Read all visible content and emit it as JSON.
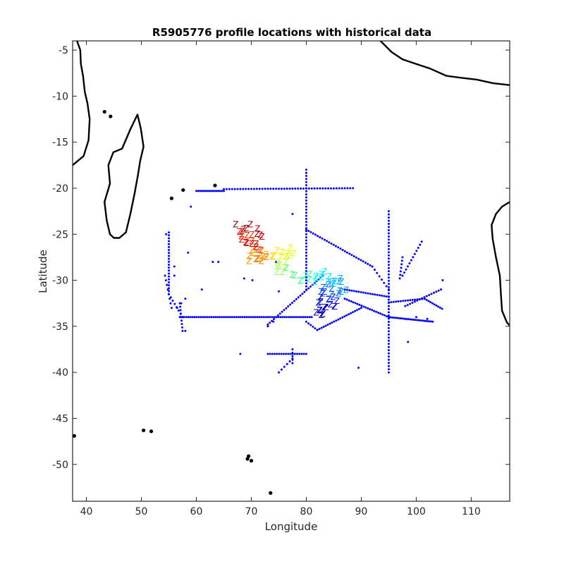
{
  "chart_data": {
    "type": "scatter",
    "title": "R5905776 profile locations with historical data",
    "xlabel": "Longitude",
    "ylabel": "Latitude",
    "xlim": [
      37.5,
      117
    ],
    "ylim": [
      -54,
      -4
    ],
    "xticks": [
      40,
      50,
      60,
      70,
      80,
      90,
      100,
      110
    ],
    "yticks": [
      -5,
      -10,
      -15,
      -20,
      -25,
      -30,
      -35,
      -40,
      -45,
      -50
    ],
    "xtick_labels": [
      "40",
      "50",
      "60",
      "70",
      "80",
      "90",
      "100",
      "110"
    ],
    "ytick_labels": [
      "-5",
      "-10",
      "-15",
      "-20",
      "-25",
      "-30",
      "-35",
      "-40",
      "-45",
      "-50"
    ],
    "grid": false,
    "box": true,
    "profile_marker_glyph": "Z",
    "colors": {
      "historical": "#0000ff",
      "coastline": "#000000",
      "profile_colormap": "jet (blue = first profile, dark red = last profile)"
    },
    "series": [
      {
        "kind": "historical",
        "marker": "dot",
        "transects": [
          {
            "from": [
              60,
              -20.3
            ],
            "to": [
              65,
              -20.3
            ],
            "n": 16
          },
          {
            "from": [
              65,
              -20.1
            ],
            "to": [
              88.5,
              -20.0
            ],
            "n": 48
          },
          {
            "from": [
              80,
              -18
            ],
            "to": [
              80,
              -31
            ],
            "n": 40
          },
          {
            "from": [
              80,
              -24.5
            ],
            "to": [
              92,
              -28.5
            ],
            "n": 30
          },
          {
            "from": [
              92,
              -28.5
            ],
            "to": [
              95,
              -31
            ],
            "n": 8
          },
          {
            "from": [
              95,
              -22.5
            ],
            "to": [
              95,
              -40
            ],
            "n": 52
          },
          {
            "from": [
              57,
              -34
            ],
            "to": [
              81,
              -34
            ],
            "n": 64
          },
          {
            "from": [
              55,
              -24.8
            ],
            "to": [
              55,
              -31.5
            ],
            "n": 22
          },
          {
            "from": [
              55,
              -31.5
            ],
            "to": [
              57.5,
              -34
            ],
            "n": 8
          },
          {
            "from": [
              54.3,
              -29.5
            ],
            "to": [
              55.5,
              -33
            ],
            "n": 8
          },
          {
            "from": [
              57,
              -32.5
            ],
            "to": [
              57.5,
              -35.5
            ],
            "n": 9
          },
          {
            "from": [
              73,
              -34.8
            ],
            "to": [
              83,
              -29.5
            ],
            "n": 28
          },
          {
            "from": [
              87,
              -32
            ],
            "to": [
              95,
              -34
            ],
            "n": 22
          },
          {
            "from": [
              95,
              -34
            ],
            "to": [
              103,
              -34.5
            ],
            "n": 24
          },
          {
            "from": [
              82,
              -35.4
            ],
            "to": [
              90,
              -33
            ],
            "n": 22
          },
          {
            "from": [
              80,
              -34.5
            ],
            "to": [
              82,
              -35.4
            ],
            "n": 6
          },
          {
            "from": [
              87,
              -31
            ],
            "to": [
              95,
              -31.8
            ],
            "n": 20
          },
          {
            "from": [
              95,
              -32.4
            ],
            "to": [
              101.5,
              -32
            ],
            "n": 16
          },
          {
            "from": [
              98,
              -32.8
            ],
            "to": [
              104.5,
              -31
            ],
            "n": 16
          },
          {
            "from": [
              101.5,
              -32
            ],
            "to": [
              104.7,
              -33.1
            ],
            "n": 10
          },
          {
            "from": [
              97.5,
              -29.5
            ],
            "to": [
              101,
              -25.8
            ],
            "n": 12
          },
          {
            "from": [
              97,
              -29.8
            ],
            "to": [
              97.5,
              -27.5
            ],
            "n": 7
          },
          {
            "from": [
              73,
              -38
            ],
            "to": [
              80,
              -38
            ],
            "n": 18
          },
          {
            "from": [
              75,
              -40
            ],
            "to": [
              77.5,
              -38.5
            ],
            "n": 6
          },
          {
            "from": [
              77.5,
              -37.5
            ],
            "to": [
              77.5,
              -39
            ],
            "n": 5
          },
          {
            "from": [
              74,
              -34.5
            ],
            "to": [
              73,
              -35
            ],
            "n": 2
          },
          {
            "from": [
              58,
              -32
            ],
            "to": [
              56.5,
              -33
            ],
            "n": 3
          }
        ],
        "points": [
          [
            68.7,
            -29.8
          ],
          [
            70.2,
            -30
          ],
          [
            64,
            -28
          ],
          [
            63,
            -28
          ],
          [
            75,
            -31.2
          ],
          [
            74.5,
            -28
          ],
          [
            83.8,
            -32.7
          ],
          [
            89.5,
            -39.5
          ],
          [
            98.5,
            -36.7
          ],
          [
            61,
            -31
          ],
          [
            58,
            -35.5
          ],
          [
            59,
            -22
          ],
          [
            58.5,
            -27
          ],
          [
            56,
            -28.5
          ],
          [
            68,
            -38
          ],
          [
            77.5,
            -22.8
          ],
          [
            104.8,
            -30
          ],
          [
            100,
            -34
          ],
          [
            102,
            -34.2
          ],
          [
            56,
            -29.5
          ],
          [
            54.5,
            -25
          ]
        ]
      },
      {
        "kind": "profiles",
        "marker": "Z",
        "count": 104,
        "path": [
          [
            67.5,
            -24.2
          ],
          [
            68.5,
            -24.3
          ],
          [
            69.8,
            -24.2
          ],
          [
            70.8,
            -24.5
          ],
          [
            71.5,
            -24.8
          ],
          [
            71.8,
            -25.5
          ],
          [
            71.2,
            -26.0
          ],
          [
            70.5,
            -26.2
          ],
          [
            69.5,
            -26.3
          ],
          [
            68.8,
            -25.8
          ],
          [
            68.2,
            -25.3
          ],
          [
            67.8,
            -24.8
          ],
          [
            68.5,
            -25.0
          ],
          [
            69.5,
            -25.2
          ],
          [
            70.3,
            -25.6
          ],
          [
            71.0,
            -26.5
          ],
          [
            71.8,
            -27.0
          ],
          [
            72.5,
            -27.2
          ],
          [
            72.0,
            -27.8
          ],
          [
            71.0,
            -28.0
          ],
          [
            70.0,
            -27.8
          ],
          [
            69.5,
            -27.3
          ],
          [
            70.3,
            -26.9
          ],
          [
            71.3,
            -27.3
          ],
          [
            72.3,
            -27.6
          ],
          [
            73.2,
            -27.5
          ],
          [
            74.0,
            -27.2
          ],
          [
            74.8,
            -27.0
          ],
          [
            75.5,
            -27.3
          ],
          [
            76.3,
            -27.1
          ],
          [
            77.0,
            -26.8
          ],
          [
            77.6,
            -26.5
          ],
          [
            77.2,
            -27.3
          ],
          [
            76.5,
            -27.8
          ],
          [
            75.6,
            -28.0
          ],
          [
            74.8,
            -28.3
          ],
          [
            74.6,
            -28.8
          ],
          [
            75.2,
            -29.0
          ],
          [
            76.0,
            -29.0
          ],
          [
            76.8,
            -28.8
          ],
          [
            77.4,
            -29.3
          ],
          [
            78.0,
            -29.8
          ],
          [
            78.8,
            -30.0
          ],
          [
            79.5,
            -29.8
          ],
          [
            80.3,
            -29.6
          ],
          [
            81.0,
            -29.8
          ],
          [
            81.5,
            -30.2
          ],
          [
            82.0,
            -29.8
          ],
          [
            82.5,
            -29.4
          ],
          [
            83.2,
            -29.3
          ],
          [
            83.8,
            -29.6
          ],
          [
            84.3,
            -30.0
          ],
          [
            84.8,
            -30.5
          ],
          [
            85.3,
            -30.3
          ],
          [
            85.8,
            -29.9
          ],
          [
            86.5,
            -30.2
          ],
          [
            86.9,
            -30.8
          ],
          [
            86.5,
            -31.3
          ],
          [
            85.8,
            -31.6
          ],
          [
            85.0,
            -31.3
          ],
          [
            84.3,
            -31.0
          ],
          [
            83.6,
            -30.6
          ],
          [
            83.0,
            -31.0
          ],
          [
            82.8,
            -31.6
          ],
          [
            83.5,
            -31.8
          ],
          [
            84.3,
            -32.0
          ],
          [
            85.0,
            -32.2
          ],
          [
            85.6,
            -32.5
          ],
          [
            85.0,
            -32.9
          ],
          [
            84.2,
            -33.0
          ],
          [
            83.4,
            -32.8
          ],
          [
            82.8,
            -32.5
          ],
          [
            82.2,
            -32.8
          ],
          [
            82.0,
            -33.3
          ],
          [
            82.4,
            -33.6
          ],
          [
            83.0,
            -33.9
          ],
          [
            83.2,
            -33.2
          ],
          [
            82.6,
            -32.2
          ]
        ]
      }
    ],
    "coastlines": [
      "Madagascar",
      "African coast (Mozambique)",
      "Sumatra / Java",
      "Western Australia",
      "Crozet Islands",
      "Prince Edward Islands",
      "Mascarene islands",
      "Comoros"
    ]
  }
}
